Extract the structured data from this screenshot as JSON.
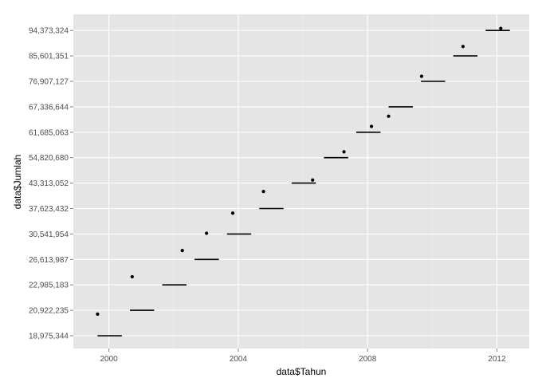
{
  "chart_data": {
    "type": "scatter",
    "title": "",
    "xlabel": "data$Tahun",
    "ylabel": "data$Jumlah",
    "xlim": [
      1998.9,
      2013.0
    ],
    "x_ticks": [
      2000,
      2004,
      2008,
      2012
    ],
    "y_tick_labels": [
      "18,975,344",
      "20,922,235",
      "22,985,183",
      "26,613,987",
      "30,541,954",
      "37,623,432",
      "43,313,052",
      "54,820,680",
      "61,685,063",
      "67,336,644",
      "76,907,127",
      "85,601,351",
      "94,373,324"
    ],
    "grid": true,
    "background": "#e5e5e5",
    "grid_color": "#ffffff",
    "mark_color": "#000000",
    "points": [
      {
        "x": 1999.65,
        "level": 0.85
      },
      {
        "x": 2000.72,
        "level": 2.32
      },
      {
        "x": 2002.27,
        "level": 3.35
      },
      {
        "x": 2003.02,
        "level": 4.03
      },
      {
        "x": 2003.83,
        "level": 4.82
      },
      {
        "x": 2004.78,
        "level": 5.67
      },
      {
        "x": 2006.3,
        "level": 6.12
      },
      {
        "x": 2007.27,
        "level": 7.23
      },
      {
        "x": 2008.12,
        "level": 8.23
      },
      {
        "x": 2008.65,
        "level": 8.63
      },
      {
        "x": 2009.67,
        "level": 10.2
      },
      {
        "x": 2010.95,
        "level": 11.37
      },
      {
        "x": 2012.12,
        "level": 12.08
      }
    ],
    "segments": [
      {
        "x_start": 1999.65,
        "x_end": 2000.4,
        "level": 0
      },
      {
        "x_start": 2000.65,
        "x_end": 2001.4,
        "level": 1
      },
      {
        "x_start": 2001.65,
        "x_end": 2002.4,
        "level": 2
      },
      {
        "x_start": 2002.65,
        "x_end": 2003.4,
        "level": 3
      },
      {
        "x_start": 2003.65,
        "x_end": 2004.4,
        "level": 4
      },
      {
        "x_start": 2004.65,
        "x_end": 2005.4,
        "level": 5
      },
      {
        "x_start": 2005.65,
        "x_end": 2006.4,
        "level": 6
      },
      {
        "x_start": 2006.65,
        "x_end": 2007.4,
        "level": 7
      },
      {
        "x_start": 2007.65,
        "x_end": 2008.4,
        "level": 8
      },
      {
        "x_start": 2008.65,
        "x_end": 2009.4,
        "level": 9
      },
      {
        "x_start": 2009.65,
        "x_end": 2010.4,
        "level": 10
      },
      {
        "x_start": 2010.65,
        "x_end": 2011.4,
        "level": 11
      },
      {
        "x_start": 2011.65,
        "x_end": 2012.4,
        "level": 12
      }
    ]
  }
}
